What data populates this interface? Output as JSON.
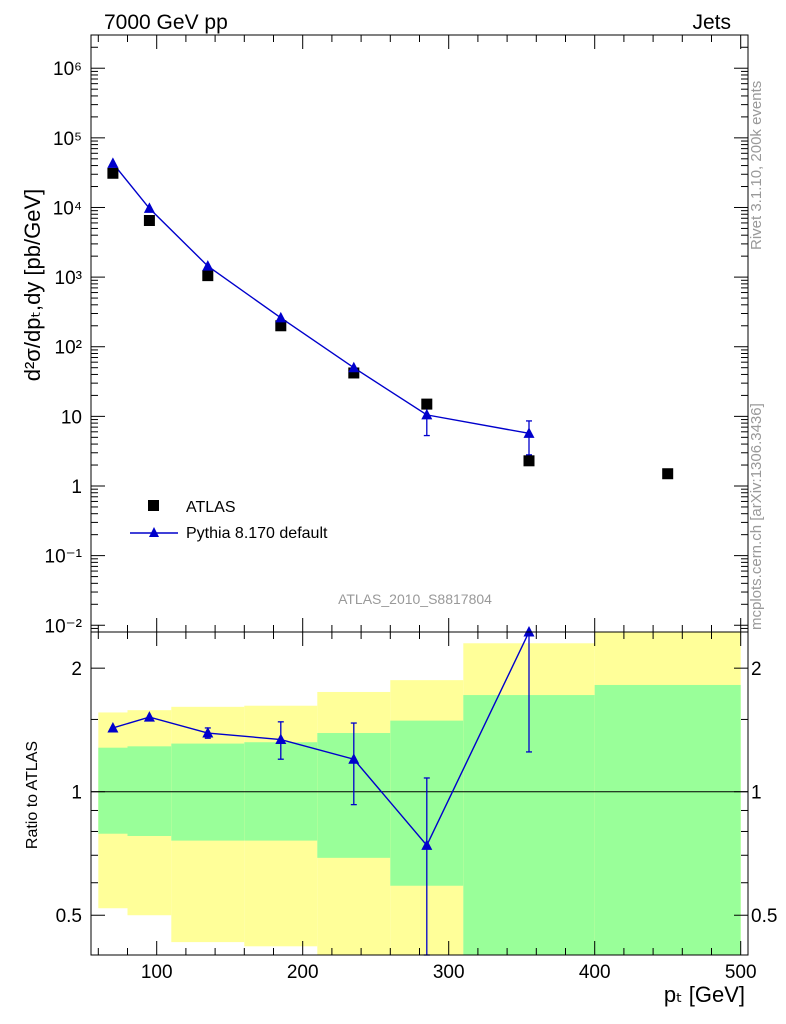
{
  "header": {
    "left_title": "7000 GeV pp",
    "right_title": "Jets",
    "side_text_top": "Rivet 3.1.10,  200k events",
    "side_text_bottom": "mcplots.cern.ch [arXiv:1306.3436]",
    "analysis_label": "ATLAS_2010_S8817804"
  },
  "colors": {
    "mc": "#0000cc",
    "data": "#000000",
    "band_outer": "#ffff99",
    "band_inner": "#99ff99"
  },
  "chart_data": [
    {
      "type": "scatter",
      "log_y": true,
      "ylabel": "d²σ/dpₜ,dy [pb/GeV]",
      "xlim": [
        55,
        505
      ],
      "ylim": [
        0.008,
        3000000
      ],
      "legend_position": "lower-left",
      "ytick_labels": [
        "10⁶",
        "10⁵",
        "10⁴",
        "10³",
        "10²",
        "10",
        "1",
        "10⁻¹",
        "10⁻²"
      ],
      "series": [
        {
          "name": "ATLAS",
          "marker": "square",
          "x": [
            70,
            95,
            135,
            185,
            235,
            285,
            355,
            450
          ],
          "y": [
            31000,
            6500,
            1050,
            200,
            42,
            15,
            2.3,
            1.5
          ]
        },
        {
          "name": "Pythia 8.170 default",
          "marker": "triangle",
          "x": [
            70,
            95,
            135,
            185,
            235,
            285,
            355
          ],
          "y": [
            43000,
            9700,
            1440,
            260,
            50,
            10.5,
            5.7
          ],
          "yerr_low": [
            0,
            0,
            0,
            0,
            0,
            5.2,
            2.9
          ],
          "yerr_high": [
            0,
            0,
            0,
            0,
            0,
            5.2,
            2.9
          ]
        }
      ]
    },
    {
      "type": "line",
      "log_y": true,
      "xlabel": "pₜ [GeV]",
      "ylabel": "Ratio to ATLAS",
      "xlim": [
        55,
        505
      ],
      "ylim": [
        0.4,
        2.45
      ],
      "x_ticks": [
        100,
        200,
        300,
        400,
        500
      ],
      "x_tick_labels": [
        "100",
        "200",
        "300",
        "400",
        "500"
      ],
      "y_ticks": [
        0.5,
        1,
        2
      ],
      "y_tick_labels": [
        "0.5",
        "1",
        "2"
      ],
      "uncertainty_bands": {
        "edges": [
          60,
          80,
          110,
          160,
          210,
          260,
          310,
          400,
          500
        ],
        "outer_low": [
          0.52,
          0.5,
          0.43,
          0.42,
          0.38,
          0.38,
          0.38,
          0.38
        ],
        "outer_high": [
          1.56,
          1.58,
          1.61,
          1.62,
          1.75,
          1.87,
          2.3,
          2.45
        ],
        "inner_low": [
          0.79,
          0.78,
          0.76,
          0.76,
          0.69,
          0.59,
          0.38,
          0.38
        ],
        "inner_high": [
          1.28,
          1.29,
          1.31,
          1.32,
          1.39,
          1.49,
          1.72,
          1.82
        ]
      },
      "series": [
        {
          "name": "Pythia 8.170 default",
          "x": [
            70,
            95,
            135,
            185,
            235,
            285,
            355
          ],
          "y": [
            1.43,
            1.52,
            1.39,
            1.34,
            1.2,
            0.74,
            2.45
          ],
          "yerr_low": [
            0.0,
            0.0,
            0.04,
            0.14,
            0.27,
            0.34,
            1.2
          ],
          "yerr_high": [
            0.0,
            0.0,
            0.04,
            0.14,
            0.27,
            0.34,
            1.2
          ]
        }
      ]
    }
  ]
}
